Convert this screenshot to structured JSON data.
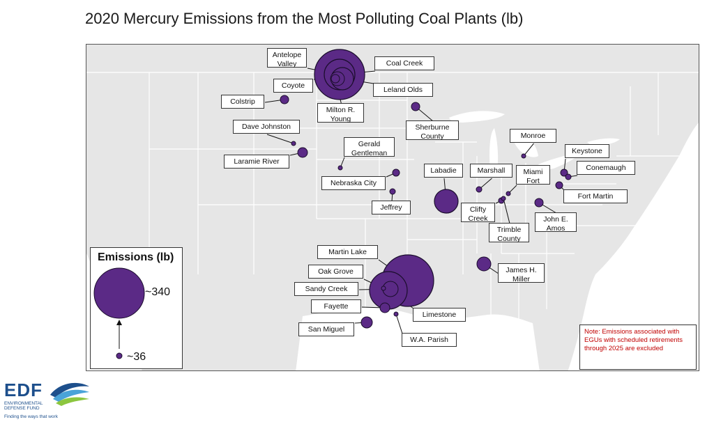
{
  "title": "2020 Mercury Emissions from the Most Polluting Coal Plants (lb)",
  "colors": {
    "bubble": "#5b2a86",
    "bubble_edge": "#3a1760",
    "land": "#e6e6e6",
    "state_line": "#ffffff",
    "water": "#ffffff"
  },
  "plants": [
    {
      "name": "Antelope Valley",
      "lines": [
        "Antelope",
        "Valley"
      ]
    },
    {
      "name": "Coal Creek",
      "lines": [
        "Coal Creek"
      ]
    },
    {
      "name": "Coyote",
      "lines": [
        "Coyote"
      ]
    },
    {
      "name": "Leland Olds",
      "lines": [
        "Leland Olds"
      ]
    },
    {
      "name": "Colstrip",
      "lines": [
        "Colstrip"
      ]
    },
    {
      "name": "Milton R. Young",
      "lines": [
        "Milton R.",
        "Young"
      ]
    },
    {
      "name": "Sherburne County",
      "lines": [
        "Sherburne",
        "County"
      ]
    },
    {
      "name": "Dave Johnston",
      "lines": [
        "Dave Johnston"
      ]
    },
    {
      "name": "Gerald Gentleman",
      "lines": [
        "Gerald",
        "Gentleman"
      ]
    },
    {
      "name": "Laramie River",
      "lines": [
        "Laramie River"
      ]
    },
    {
      "name": "Nebraska City",
      "lines": [
        "Nebraska City"
      ]
    },
    {
      "name": "Jeffrey",
      "lines": [
        "Jeffrey"
      ]
    },
    {
      "name": "Labadie",
      "lines": [
        "Labadie"
      ]
    },
    {
      "name": "Marshall",
      "lines": [
        "Marshall"
      ]
    },
    {
      "name": "Miami Fort",
      "lines": [
        "Miami",
        "Fort"
      ]
    },
    {
      "name": "Monroe",
      "lines": [
        "Monroe"
      ]
    },
    {
      "name": "Keystone",
      "lines": [
        "Keystone"
      ]
    },
    {
      "name": "Conemaugh",
      "lines": [
        "Conemaugh"
      ]
    },
    {
      "name": "Fort Martin",
      "lines": [
        "Fort Martin"
      ]
    },
    {
      "name": "Clifty Creek",
      "lines": [
        "Clifty",
        "Creek"
      ]
    },
    {
      "name": "Trimble County",
      "lines": [
        "Trimble",
        "County"
      ]
    },
    {
      "name": "John E. Amos",
      "lines": [
        "John E.",
        "Amos"
      ]
    },
    {
      "name": "Martin Lake",
      "lines": [
        "Martin Lake"
      ]
    },
    {
      "name": "Oak Grove",
      "lines": [
        "Oak Grove"
      ]
    },
    {
      "name": "Sandy Creek",
      "lines": [
        "Sandy Creek"
      ]
    },
    {
      "name": "Fayette",
      "lines": [
        "Fayette"
      ]
    },
    {
      "name": "Limestone",
      "lines": [
        "Limestone"
      ]
    },
    {
      "name": "San Miguel",
      "lines": [
        "San Miguel"
      ]
    },
    {
      "name": "W.A. Parish",
      "lines": [
        "W.A. Parish"
      ]
    },
    {
      "name": "James H. Miller",
      "lines": [
        "James H.",
        "Miller"
      ]
    }
  ],
  "legend": {
    "title": "Emissions (lb)",
    "max_label": "~340",
    "min_label": "~36"
  },
  "note": "Note:  Emissions associated with EGUs with scheduled retirements through 2025 are excluded",
  "logo": {
    "text": "EDF",
    "subtitle": "ENVIRONMENTAL DEFENSE FUND",
    "tagline": "Finding the ways that work"
  }
}
